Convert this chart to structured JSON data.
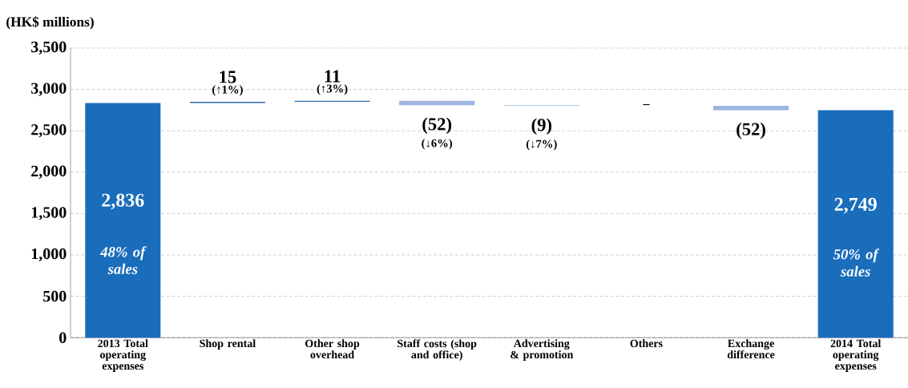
{
  "chart_data": {
    "type": "bar",
    "ylabel": "(HK$ millions)",
    "categories": [
      "2013 Total operating expenses",
      "Shop rental",
      "Other shop overhead",
      "Staff costs (shop and office)",
      "Advertising & promotion",
      "Others",
      "Exchange difference",
      "2014 Total operating expenses"
    ],
    "values": [
      2836,
      15,
      11,
      -52,
      -9,
      0,
      -52,
      2749
    ],
    "base": [
      0,
      2836,
      2851,
      2862,
      2810,
      null,
      2801,
      0
    ],
    "colors": [
      "#1a6dbb",
      "#2e6db4",
      "#2e6db4",
      "#9db5e0",
      "#9db5e0",
      "#9db5e0",
      "#9db5e0",
      "#1a6dbb"
    ],
    "value_labels": [
      "2,836",
      "15",
      "11",
      "(52)",
      "(9)",
      null,
      "(52)",
      "2,749"
    ],
    "annotations": [
      "(↑1%)",
      "(↑3%)",
      "(↓6%)",
      "(↓7%)",
      "48% of sales",
      "50% of sales",
      "–"
    ],
    "ylim": [
      0,
      3500
    ],
    "yticks": [
      0,
      500,
      {
        "value": 1000,
        "label": "1,000"
      },
      {
        "value": 1500,
        "label": "1,500"
      },
      {
        "value": 2000,
        "label": "2,000"
      },
      {
        "value": 2500,
        "label": "2,500"
      },
      {
        "value": 3000,
        "label": "3,000"
      },
      {
        "value": 3500,
        "label": "3,500"
      }
    ],
    "grid": "y"
  }
}
